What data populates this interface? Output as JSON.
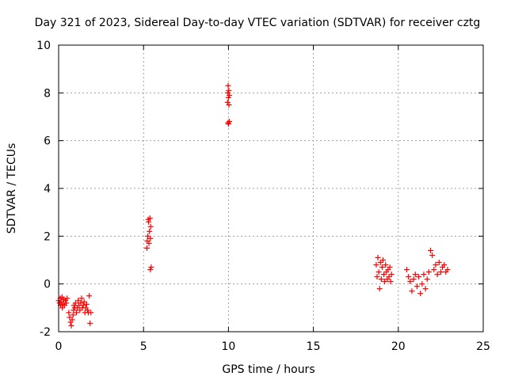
{
  "chart_data": {
    "type": "scatter",
    "title": "Day 321 of 2023, Sidereal Day-to-day VTEC variation (SDTVAR) for receiver cztg",
    "xlabel": "GPS time / hours",
    "ylabel": "SDTVAR / TECUs",
    "xlim": [
      0,
      25
    ],
    "ylim": [
      -2,
      10
    ],
    "xticks": [
      "0",
      "5",
      "10",
      "15",
      "20",
      "25"
    ],
    "yticks": [
      "-2",
      "0",
      "2",
      "4",
      "6",
      "8",
      "10"
    ],
    "grid": true,
    "marker": "+",
    "marker_color": "#ff0000",
    "series": [
      {
        "name": "SDTVAR",
        "points": [
          [
            0.0,
            -0.7
          ],
          [
            0.05,
            -0.8
          ],
          [
            0.1,
            -0.6
          ],
          [
            0.12,
            -0.9
          ],
          [
            0.15,
            -0.75
          ],
          [
            0.2,
            -0.55
          ],
          [
            0.22,
            -1.0
          ],
          [
            0.25,
            -0.85
          ],
          [
            0.3,
            -0.65
          ],
          [
            0.35,
            -0.9
          ],
          [
            0.4,
            -0.7
          ],
          [
            0.45,
            -0.8
          ],
          [
            0.5,
            -0.6
          ],
          [
            0.6,
            -1.2
          ],
          [
            0.65,
            -1.4
          ],
          [
            0.7,
            -1.6
          ],
          [
            0.75,
            -1.75
          ],
          [
            0.8,
            -1.5
          ],
          [
            0.85,
            -1.3
          ],
          [
            0.88,
            -1.1
          ],
          [
            0.9,
            -0.9
          ],
          [
            0.95,
            -1.0
          ],
          [
            1.0,
            -0.8
          ],
          [
            1.05,
            -1.2
          ],
          [
            1.1,
            -1.0
          ],
          [
            1.15,
            -0.7
          ],
          [
            1.2,
            -0.9
          ],
          [
            1.25,
            -1.1
          ],
          [
            1.3,
            -0.8
          ],
          [
            1.35,
            -0.6
          ],
          [
            1.4,
            -1.0
          ],
          [
            1.45,
            -0.9
          ],
          [
            1.5,
            -0.75
          ],
          [
            1.55,
            -1.2
          ],
          [
            1.6,
            -1.0
          ],
          [
            1.65,
            -0.85
          ],
          [
            1.7,
            -1.1
          ],
          [
            1.75,
            -1.2
          ],
          [
            1.8,
            -0.5
          ],
          [
            1.85,
            -1.65
          ],
          [
            1.9,
            -1.2
          ],
          [
            5.2,
            1.5
          ],
          [
            5.22,
            1.8
          ],
          [
            5.25,
            2.0
          ],
          [
            5.28,
            2.7
          ],
          [
            5.3,
            2.6
          ],
          [
            5.32,
            1.7
          ],
          [
            5.35,
            2.2
          ],
          [
            5.38,
            2.75
          ],
          [
            5.4,
            1.9
          ],
          [
            5.42,
            2.4
          ],
          [
            5.45,
            0.7
          ],
          [
            5.4,
            0.6
          ],
          [
            9.95,
            7.6
          ],
          [
            9.97,
            8.0
          ],
          [
            9.98,
            8.3
          ],
          [
            10.0,
            7.8
          ],
          [
            10.02,
            8.1
          ],
          [
            10.03,
            7.5
          ],
          [
            10.05,
            7.9
          ],
          [
            10.0,
            6.7
          ],
          [
            10.05,
            6.8
          ],
          [
            9.98,
            6.75
          ],
          [
            18.7,
            0.8
          ],
          [
            18.75,
            0.3
          ],
          [
            18.8,
            1.1
          ],
          [
            18.85,
            0.5
          ],
          [
            18.9,
            -0.2
          ],
          [
            18.95,
            0.9
          ],
          [
            19.0,
            0.2
          ],
          [
            19.05,
            0.7
          ],
          [
            19.1,
            1.0
          ],
          [
            19.15,
            0.4
          ],
          [
            19.2,
            0.1
          ],
          [
            19.25,
            0.8
          ],
          [
            19.3,
            0.5
          ],
          [
            19.35,
            0.2
          ],
          [
            19.4,
            0.6
          ],
          [
            19.45,
            0.3
          ],
          [
            19.5,
            0.7
          ],
          [
            19.55,
            0.1
          ],
          [
            19.6,
            0.4
          ],
          [
            20.5,
            0.6
          ],
          [
            20.6,
            0.3
          ],
          [
            20.7,
            0.1
          ],
          [
            20.8,
            -0.3
          ],
          [
            20.9,
            0.2
          ],
          [
            21.0,
            0.4
          ],
          [
            21.1,
            -0.1
          ],
          [
            21.2,
            0.3
          ],
          [
            21.3,
            -0.4
          ],
          [
            21.4,
            0.0
          ],
          [
            21.5,
            0.4
          ],
          [
            21.6,
            -0.2
          ],
          [
            21.7,
            0.2
          ],
          [
            21.8,
            0.5
          ],
          [
            21.9,
            1.4
          ],
          [
            22.0,
            1.2
          ],
          [
            22.1,
            0.6
          ],
          [
            22.2,
            0.8
          ],
          [
            22.3,
            0.4
          ],
          [
            22.4,
            0.9
          ],
          [
            22.5,
            0.5
          ],
          [
            22.6,
            0.7
          ],
          [
            22.7,
            0.8
          ],
          [
            22.8,
            0.5
          ],
          [
            22.9,
            0.6
          ]
        ]
      }
    ]
  }
}
